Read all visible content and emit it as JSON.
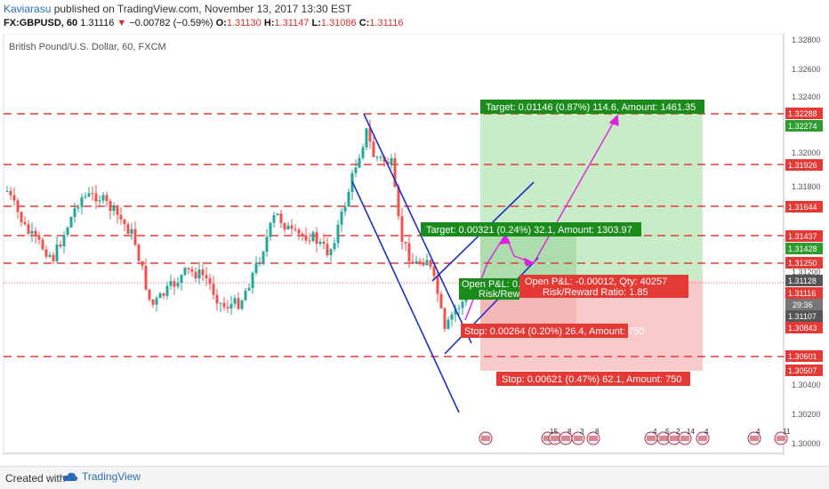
{
  "header": {
    "author": "Kaviarasu",
    "published_text": " published on TradingView.com, November 13, 2017 13:30 EST",
    "symbol": "FX:GBPUSD, 60",
    "last": "1.31116",
    "change_arrow": "▼",
    "change": "−0.00782 (−0.59%)",
    "o_label": "O:",
    "o": "1.31130",
    "h_label": "H:",
    "h": "1.31147",
    "l_label": "L:",
    "l": "1.31086",
    "c_label": "C:",
    "c": "1.31116"
  },
  "chart_title": "British Pound/U.S. Dollar, 60, FXCM",
  "footer": {
    "created": "Created with",
    "brand": "TradingView"
  },
  "colors": {
    "bull": "#26a69a",
    "bear": "#ef5350",
    "level": "#e53935",
    "channel": "#1a2fc7",
    "projection": "#e020e0",
    "target_fill": "#c8ecc8",
    "stop_fill": "#f8caca"
  },
  "axis": {
    "price_ticks": [
      "1.32800",
      "1.32600",
      "1.32400",
      "1.32000",
      "1.31800",
      "1.31200",
      "1.30400",
      "1.30200",
      "1.30000"
    ],
    "level_tags": [
      "1.32288",
      "1.32274",
      "1.31926",
      "1.31644",
      "1.31437",
      "1.31428",
      "1.31250",
      "1.31128",
      "1.31116",
      "29:36",
      "1.31107",
      "1.30843",
      "1.30601",
      "1.30507"
    ],
    "date_ticks": [
      "8",
      "9",
      "10",
      "13",
      "14",
      "15",
      "16"
    ]
  },
  "labels": {
    "target_big": "Target: 0.01146 (0.87%) 114.6, Amount: 1461.35",
    "target_small": "Target: 0.00321 (0.24%) 32.1, Amount: 1303.97",
    "pnl_small": "Open P&L: 0.",
    "rr_small": "Risk/Rew",
    "pnl_big": "Open P&L: -0.00012, Qty: 40257",
    "rr_big": "Risk/Reward Ratio: 1.85",
    "stop_small": "Stop: 0.00264 (0.20%) 26.4, Amount: 750",
    "stop_big": "Stop: 0.00621 (0.47%) 62.1, Amount: 750"
  },
  "event_badges": [
    "15",
    "8",
    "3",
    "8",
    "4",
    "5",
    "2",
    "14",
    "4",
    "4",
    "11"
  ]
}
